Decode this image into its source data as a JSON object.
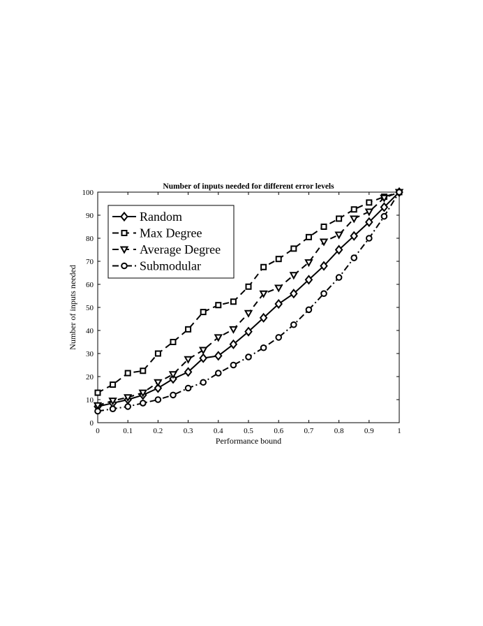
{
  "chart_data": {
    "type": "line",
    "title": "Number of inputs needed for different error levels",
    "xlabel": "Performance bound",
    "ylabel": "Number of inputs needed",
    "xlim": [
      0,
      1
    ],
    "ylim": [
      0,
      100
    ],
    "xticks": [
      "0",
      "0.1",
      "0.2",
      "0.3",
      "0.4",
      "0.5",
      "0.6",
      "0.7",
      "0.8",
      "0.9",
      "1"
    ],
    "yticks": [
      "0",
      "10",
      "20",
      "30",
      "40",
      "50",
      "60",
      "70",
      "80",
      "90",
      "100"
    ],
    "grid": false,
    "legend_position": "top-left",
    "series": [
      {
        "name": "Random",
        "line_style": "solid",
        "marker": "diamond",
        "marker_fill": "white",
        "x": [
          0,
          0.05,
          0.1,
          0.15,
          0.2,
          0.25,
          0.3,
          0.35,
          0.4,
          0.45,
          0.5,
          0.55,
          0.6,
          0.65,
          0.7,
          0.75,
          0.8,
          0.85,
          0.9,
          0.95,
          1.0
        ],
        "y": [
          7,
          8.5,
          10,
          12,
          15,
          19,
          22,
          28,
          29,
          34,
          39.5,
          45.5,
          51.5,
          56,
          62,
          68,
          75,
          81,
          87,
          93.5,
          100
        ]
      },
      {
        "name": "Max Degree",
        "line_style": "dashed",
        "marker": "square",
        "marker_fill": "white",
        "x": [
          0,
          0.05,
          0.1,
          0.15,
          0.2,
          0.25,
          0.3,
          0.35,
          0.4,
          0.45,
          0.5,
          0.55,
          0.6,
          0.65,
          0.7,
          0.75,
          0.8,
          0.85,
          0.9,
          0.95,
          1.0
        ],
        "y": [
          13,
          16.5,
          21.5,
          22.5,
          30,
          35,
          40.5,
          48,
          51,
          52.5,
          59,
          67.5,
          71,
          75.5,
          80.5,
          85,
          88.5,
          92.5,
          95.5,
          98,
          100
        ]
      },
      {
        "name": "Average Degree",
        "line_style": "dashed",
        "marker": "triangle-down",
        "marker_fill": "white",
        "x": [
          0,
          0.05,
          0.1,
          0.15,
          0.2,
          0.25,
          0.3,
          0.35,
          0.4,
          0.45,
          0.5,
          0.55,
          0.6,
          0.65,
          0.7,
          0.75,
          0.8,
          0.85,
          0.9,
          0.95,
          1.0
        ],
        "y": [
          7.5,
          9.5,
          11,
          13,
          17.5,
          21,
          27.5,
          31.5,
          37,
          40.5,
          47.5,
          56,
          58.5,
          64,
          69.5,
          78.5,
          81.5,
          88.5,
          91.5,
          97.5,
          100
        ]
      },
      {
        "name": "Submodular",
        "line_style": "dashdot",
        "marker": "circle",
        "marker_fill": "white",
        "x": [
          0,
          0.05,
          0.1,
          0.15,
          0.2,
          0.25,
          0.3,
          0.35,
          0.4,
          0.45,
          0.5,
          0.55,
          0.6,
          0.65,
          0.7,
          0.75,
          0.8,
          0.85,
          0.9,
          0.95,
          1.0
        ],
        "y": [
          5,
          6,
          7,
          8.5,
          10,
          12,
          15,
          17.5,
          21.5,
          25,
          28.5,
          32.5,
          37,
          42.5,
          49,
          56,
          63,
          71.5,
          80,
          89.5,
          100
        ]
      }
    ]
  }
}
